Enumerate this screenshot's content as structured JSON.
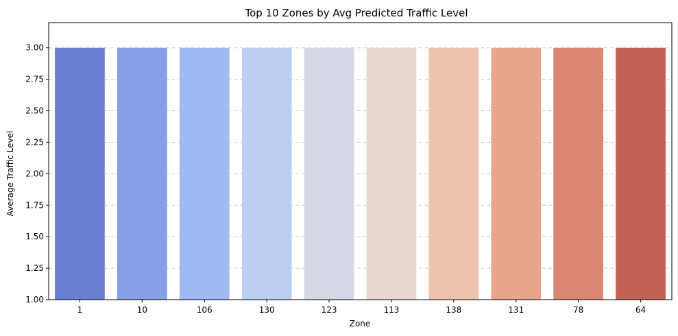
{
  "chart_data": {
    "type": "bar",
    "title": "Top 10 Zones by Avg Predicted Traffic Level",
    "xlabel": "Zone",
    "ylabel": "Average Traffic Level",
    "categories": [
      "1",
      "10",
      "106",
      "130",
      "123",
      "113",
      "138",
      "131",
      "78",
      "64"
    ],
    "values": [
      3,
      3,
      3,
      3,
      3,
      3,
      3,
      3,
      3,
      3
    ],
    "ylim": [
      1.0,
      3.2
    ],
    "yticks": [
      "1.00",
      "1.25",
      "1.50",
      "1.75",
      "2.00",
      "2.25",
      "2.50",
      "2.75",
      "3.00"
    ],
    "grid": "y-axis, dashed",
    "colors": [
      "#6a7fd3",
      "#869fe6",
      "#a2baf2",
      "#bccff0",
      "#d5d9e5",
      "#e5d8d1",
      "#ecc3af",
      "#e7a68d",
      "#d98772",
      "#c26155"
    ]
  }
}
